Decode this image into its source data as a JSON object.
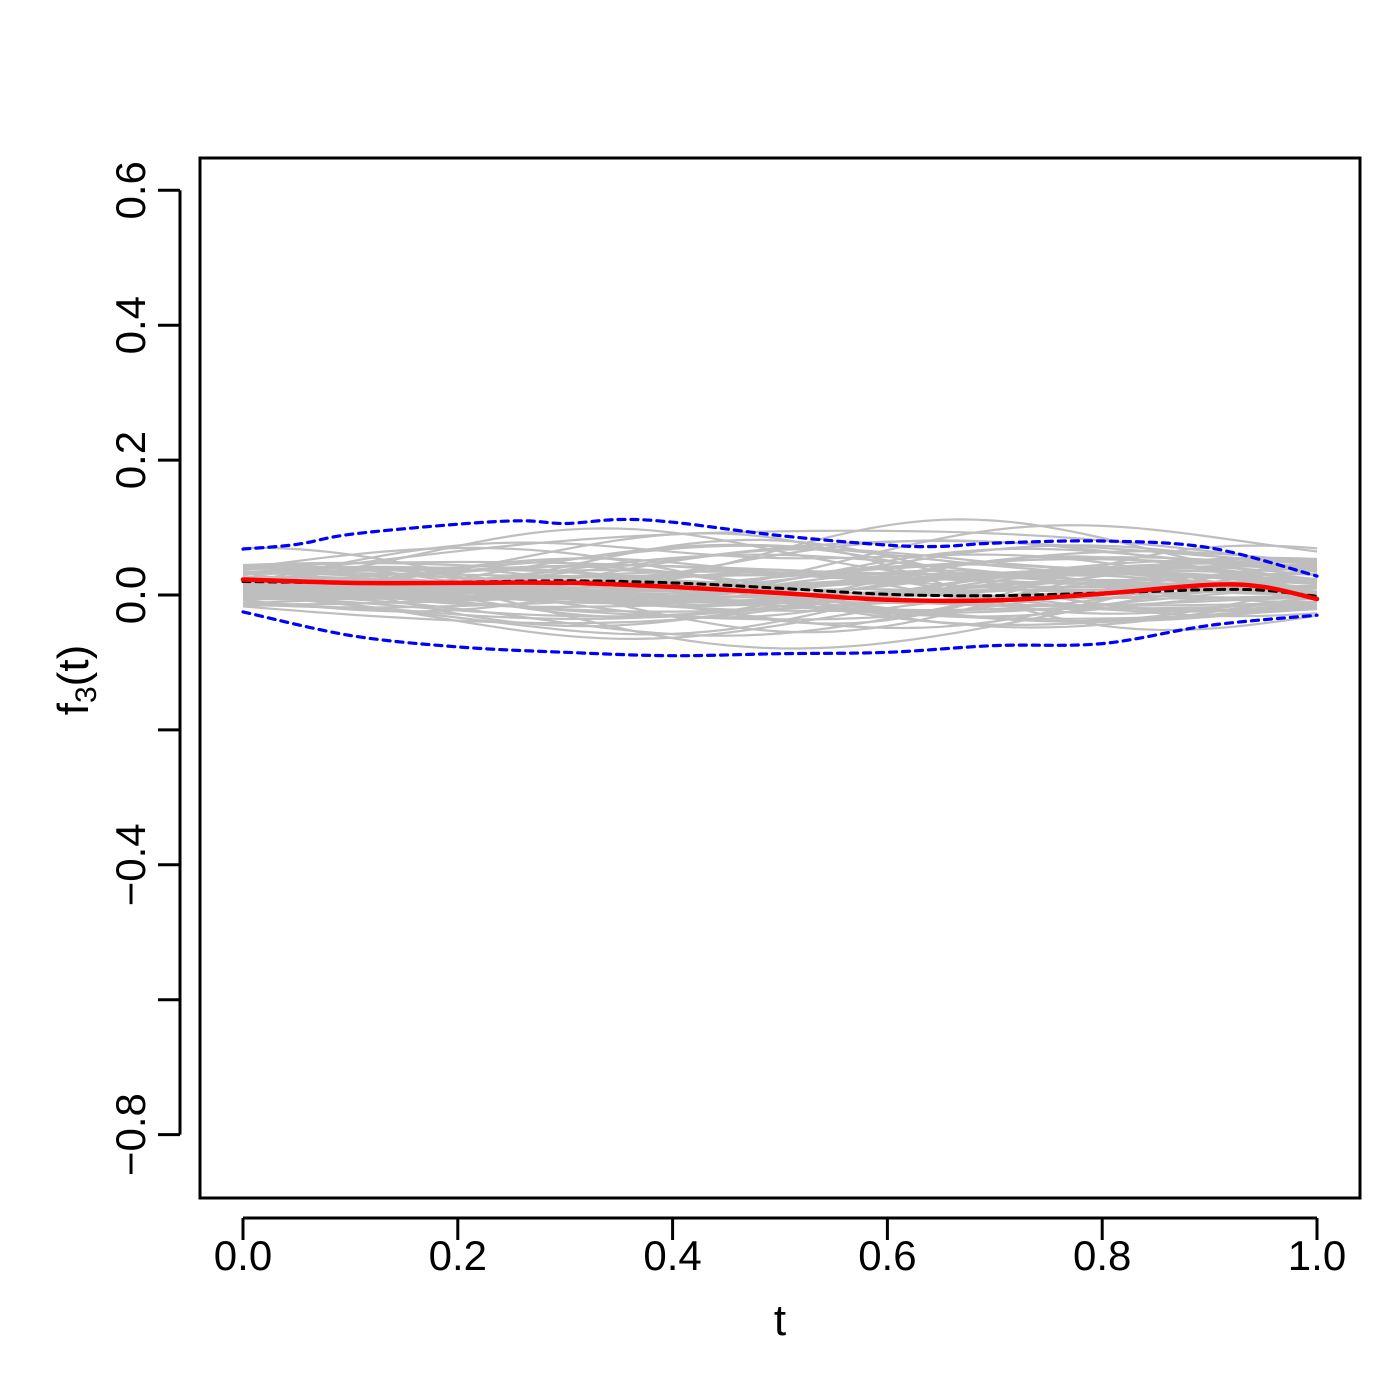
{
  "chart_data": {
    "type": "line",
    "title": "",
    "xlabel": "t",
    "ylabel": {
      "base": "f",
      "subscript": "3",
      "suffix": "(t)"
    },
    "xlim": [
      0.0,
      1.0
    ],
    "ylim": [
      -0.9,
      0.65
    ],
    "x_ticks": [
      {
        "value": 0.0,
        "label": "0.0"
      },
      {
        "value": 0.2,
        "label": "0.2"
      },
      {
        "value": 0.4,
        "label": "0.4"
      },
      {
        "value": 0.6,
        "label": "0.6"
      },
      {
        "value": 0.8,
        "label": "0.8"
      },
      {
        "value": 1.0,
        "label": "1.0"
      }
    ],
    "y_ticks": [
      {
        "value": 0.6,
        "label": "0.6"
      },
      {
        "value": 0.4,
        "label": "0.4"
      },
      {
        "value": 0.2,
        "label": "0.2"
      },
      {
        "value": 0.0,
        "label": "0.0"
      },
      {
        "value": -0.2,
        "label": ""
      },
      {
        "value": -0.4,
        "label": "−0.4"
      },
      {
        "value": -0.6,
        "label": ""
      },
      {
        "value": -0.8,
        "label": "−0.8"
      }
    ],
    "grid": false,
    "legend": "none",
    "colors": {
      "samples": "#bebebe",
      "estimate": "#ff0000",
      "truth": "#000000",
      "band": "#0000ff"
    },
    "sample_curves_count": 70,
    "series": [
      {
        "role": "estimate",
        "style": "solid",
        "x": [
          0.0,
          0.1,
          0.2,
          0.3,
          0.4,
          0.5,
          0.6,
          0.7,
          0.8,
          0.9,
          0.95,
          1.0
        ],
        "y": [
          0.023,
          0.018,
          0.018,
          0.018,
          0.012,
          0.003,
          -0.007,
          -0.008,
          0.002,
          0.015,
          0.012,
          -0.006
        ]
      },
      {
        "role": "truth",
        "style": "dashed",
        "x": [
          0.0,
          0.1,
          0.2,
          0.3,
          0.4,
          0.5,
          0.6,
          0.7,
          0.8,
          0.9,
          0.95,
          1.0
        ],
        "y": [
          0.02,
          0.018,
          0.019,
          0.021,
          0.018,
          0.01,
          0.001,
          -0.001,
          0.003,
          0.008,
          0.007,
          -0.002
        ]
      },
      {
        "role": "band-upper",
        "style": "dashed",
        "x": [
          0.0,
          0.05,
          0.1,
          0.2,
          0.26,
          0.3,
          0.35,
          0.4,
          0.5,
          0.6,
          0.65,
          0.7,
          0.8,
          0.9,
          1.0
        ],
        "y": [
          0.068,
          0.075,
          0.09,
          0.105,
          0.11,
          0.106,
          0.112,
          0.108,
          0.088,
          0.074,
          0.072,
          0.077,
          0.08,
          0.07,
          0.028
        ]
      },
      {
        "role": "band-lower",
        "style": "dashed",
        "x": [
          0.0,
          0.1,
          0.2,
          0.3,
          0.4,
          0.5,
          0.6,
          0.7,
          0.8,
          0.9,
          1.0
        ],
        "y": [
          -0.025,
          -0.06,
          -0.077,
          -0.085,
          -0.09,
          -0.087,
          -0.085,
          -0.075,
          -0.072,
          -0.045,
          -0.03
        ]
      }
    ]
  }
}
